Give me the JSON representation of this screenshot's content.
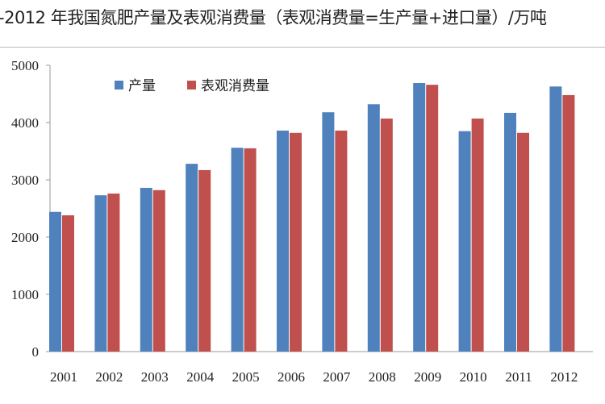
{
  "chart_data": {
    "type": "bar",
    "title": "-2012 年我国氮肥产量及表观消费量（表观消费量=生产量+进口量）/万吨",
    "categories": [
      "2001",
      "2002",
      "2003",
      "2004",
      "2005",
      "2006",
      "2007",
      "2008",
      "2009",
      "2010",
      "2011",
      "2012"
    ],
    "series": [
      {
        "name": "产量",
        "color": "#4f81bd",
        "values": [
          2440,
          2730,
          2860,
          3280,
          3560,
          3860,
          4180,
          4320,
          4690,
          3850,
          4170,
          4630
        ]
      },
      {
        "name": "表观消费量",
        "color": "#c0504d",
        "values": [
          2380,
          2760,
          2820,
          3170,
          3550,
          3820,
          3860,
          4070,
          4660,
          4070,
          3820,
          4480
        ]
      }
    ],
    "yticks": [
      0,
      1000,
      2000,
      3000,
      4000,
      5000
    ],
    "ylim": [
      0,
      5000
    ],
    "grid": false,
    "legend": "top-left"
  }
}
